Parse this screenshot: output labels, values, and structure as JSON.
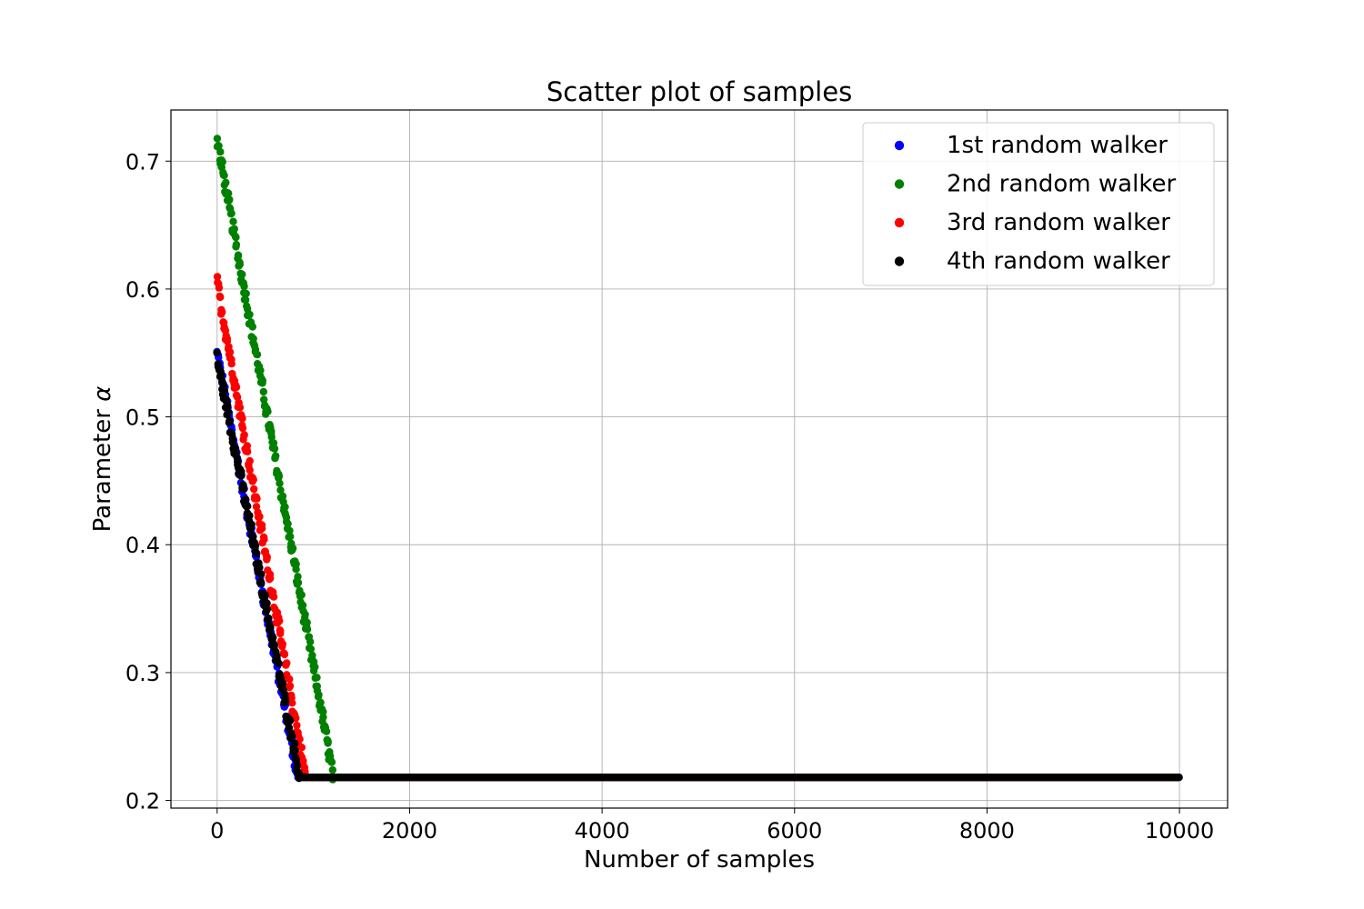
{
  "chart_data": {
    "type": "scatter",
    "title": "Scatter plot of samples",
    "xlabel": "Number of samples",
    "ylabel_prefix": "Parameter ",
    "ylabel_symbol": "α",
    "xlim": [
      -480,
      10500
    ],
    "ylim": [
      0.194,
      0.74
    ],
    "xticks": [
      0,
      2000,
      4000,
      6000,
      8000,
      10000
    ],
    "xtick_labels": [
      "0",
      "2000",
      "4000",
      "6000",
      "8000",
      "10000"
    ],
    "yticks": [
      0.2,
      0.3,
      0.4,
      0.5,
      0.6,
      0.7
    ],
    "ytick_labels": [
      "0.2",
      "0.3",
      "0.4",
      "0.5",
      "0.6",
      "0.7"
    ],
    "grid": true,
    "legend_position": "top-right",
    "series": [
      {
        "name": "1st random walker",
        "color": "#0000ff",
        "start": [
          0,
          0.549
        ],
        "converge_x": 840,
        "end_value": 0.218,
        "end_x": 10000
      },
      {
        "name": "2nd random walker",
        "color": "#008000",
        "start": [
          0,
          0.716
        ],
        "converge_x": 1210,
        "end_value": 0.218,
        "end_x": 10000
      },
      {
        "name": "3rd random walker",
        "color": "#ff0000",
        "start": [
          0,
          0.604
        ],
        "converge_x": 920,
        "end_value": 0.218,
        "end_x": 10000
      },
      {
        "name": "4th random walker",
        "color": "#000000",
        "start": [
          0,
          0.545
        ],
        "converge_x": 860,
        "end_value": 0.218,
        "end_x": 10000
      }
    ]
  }
}
